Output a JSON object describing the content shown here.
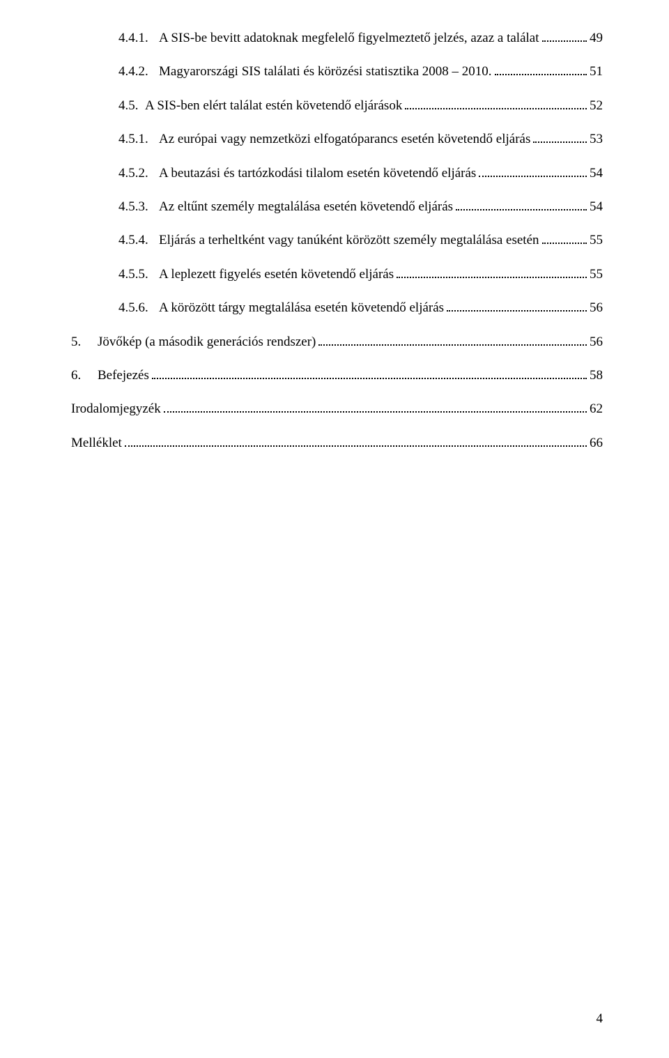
{
  "text_color": "#000000",
  "background_color": "#ffffff",
  "font_family": "Times New Roman",
  "font_size_pt": 14,
  "toc": [
    {
      "level": 1,
      "number": "4.4.1.",
      "title": "A SIS-be bevitt adatoknak megfelelő figyelmeztető jelzés, azaz a találat",
      "page": "49"
    },
    {
      "level": 1,
      "number": "4.4.2.",
      "title": "Magyarországi SIS találati és körözési statisztika 2008 – 2010.",
      "page": "51"
    },
    {
      "level": 1,
      "number": "4.5.",
      "title": "A SIS-ben elért találat estén követendő eljárások",
      "page": "52",
      "shortNum": true
    },
    {
      "level": 1,
      "number": "4.5.1.",
      "title": "Az európai vagy nemzetközi elfogatóparancs esetén követendő eljárás",
      "page": "53"
    },
    {
      "level": 1,
      "number": "4.5.2.",
      "title": "A beutazási és tartózkodási tilalom esetén követendő eljárás",
      "page": "54"
    },
    {
      "level": 1,
      "number": "4.5.3.",
      "title": "Az eltűnt személy megtalálása esetén követendő eljárás",
      "page": "54"
    },
    {
      "level": 1,
      "number": "4.5.4.",
      "title": "Eljárás a terheltként vagy tanúként körözött személy megtalálása esetén",
      "page": "55"
    },
    {
      "level": 1,
      "number": "4.5.5.",
      "title": "A leplezett figyelés esetén követendő eljárás",
      "page": "55"
    },
    {
      "level": 1,
      "number": "4.5.6.",
      "title": "A körözött tárgy megtalálása esetén követendő eljárás",
      "page": "56"
    },
    {
      "level": 0,
      "number": "5.",
      "title": "Jövőkép (a második generációs rendszer)",
      "page": "56",
      "shiftLeft": true
    },
    {
      "level": 0,
      "number": "6.",
      "title": "Befejezés",
      "page": "58",
      "shiftLeft": true
    },
    {
      "level": 0,
      "number": "",
      "title": "Irodalomjegyzék",
      "page": "62",
      "noNumber": true,
      "shiftLeft": true
    },
    {
      "level": 0,
      "number": "",
      "title": "Melléklet",
      "page": "66",
      "noNumber": true,
      "shiftLeft": true
    }
  ],
  "footer_page": "4"
}
